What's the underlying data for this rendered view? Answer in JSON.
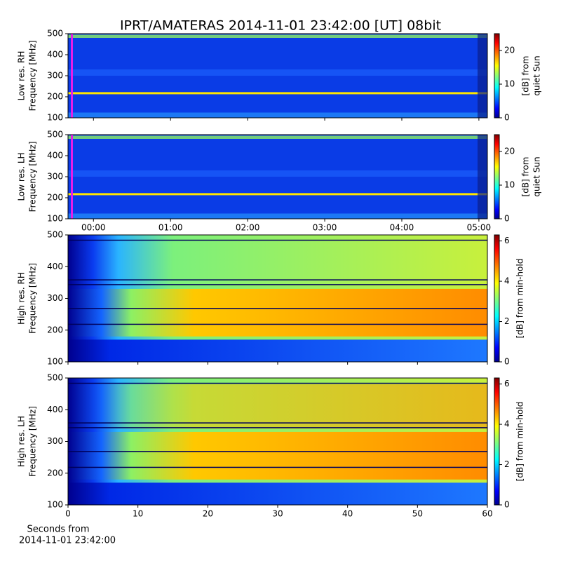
{
  "title": "IPRT/AMATERAS 2014-11-01 23:42:00 [UT]   08bit",
  "chart_data": [
    {
      "type": "spectrogram",
      "ylabel": [
        "Low res. RH",
        "Frequency [MHz]"
      ],
      "xlim": [
        -0.33,
        5.11
      ],
      "xticks": [
        0,
        1,
        2,
        3,
        4,
        5
      ],
      "xticklabels": false,
      "ylim": [
        100,
        500
      ],
      "yticks": [
        100,
        200,
        300,
        400,
        500
      ],
      "colorbar_label": [
        "[dB] from",
        "quiet Sun"
      ],
      "clim": [
        0,
        25
      ],
      "cticks": [
        0,
        10,
        20
      ]
    },
    {
      "type": "spectrogram",
      "ylabel": [
        "Low res. LH",
        "Frequency [MHz]"
      ],
      "xlim": [
        -0.33,
        5.11
      ],
      "xticks": [
        {
          "value": 0,
          "label": "00:00"
        },
        {
          "value": 1,
          "label": "01:00"
        },
        {
          "value": 2,
          "label": "02:00"
        },
        {
          "value": 3,
          "label": "03:00"
        },
        {
          "value": 4,
          "label": "04:00"
        },
        {
          "value": 5,
          "label": "05:00"
        }
      ],
      "xticklabels": true,
      "ylim": [
        100,
        500
      ],
      "yticks": [
        100,
        200,
        300,
        400,
        500
      ],
      "colorbar_label": [
        "[dB] from",
        "quiet Sun"
      ],
      "clim": [
        0,
        25
      ],
      "cticks": [
        0,
        10,
        20
      ]
    },
    {
      "type": "spectrogram",
      "ylabel": [
        "High res. RH",
        "Frequency [MHz]"
      ],
      "xlim": [
        0,
        60
      ],
      "xticks": [
        0,
        10,
        20,
        30,
        40,
        50,
        60
      ],
      "xticklabels": false,
      "ylim": [
        100,
        500
      ],
      "yticks": [
        100,
        200,
        300,
        400,
        500
      ],
      "colorbar_label": [
        "[dB] from min-hold"
      ],
      "clim": [
        0,
        6.3
      ],
      "cticks": [
        0,
        2,
        4,
        6
      ]
    },
    {
      "type": "spectrogram",
      "ylabel": [
        "High res. LH",
        "Frequency [MHz]"
      ],
      "xlabel": [
        "Seconds from",
        "2014-11-01 23:42:00"
      ],
      "xlim": [
        0,
        60
      ],
      "xticks": [
        0,
        10,
        20,
        30,
        40,
        50,
        60
      ],
      "xticklabels": true,
      "ylim": [
        100,
        500
      ],
      "yticks": [
        100,
        200,
        300,
        400,
        500
      ],
      "colorbar_label": [
        "[dB] from min-hold"
      ],
      "clim": [
        0,
        6.3
      ],
      "cticks": [
        0,
        2,
        4,
        6
      ]
    }
  ]
}
